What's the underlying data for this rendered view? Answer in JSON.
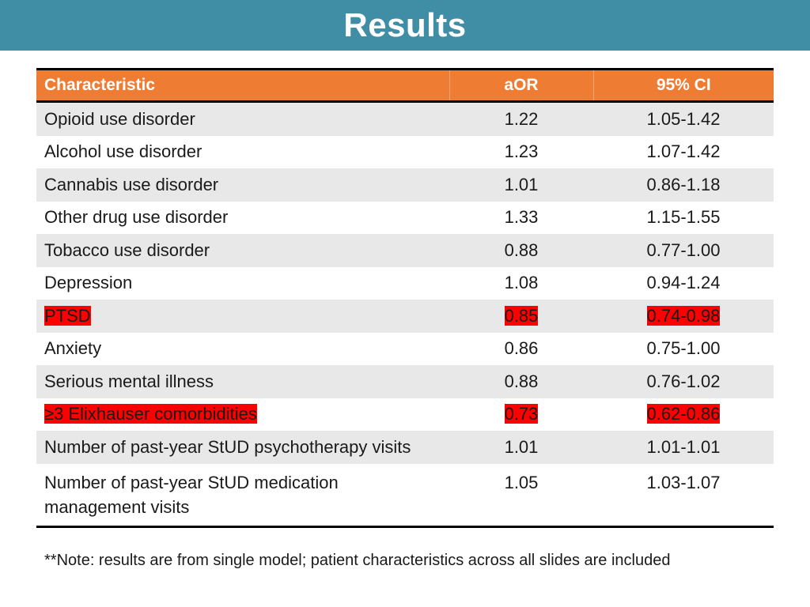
{
  "slide": {
    "title": "Results",
    "note": "**Note: results are from single model; patient characteristics across all slides are included"
  },
  "colors": {
    "title_bar": "#3f8ea6",
    "header_bg": "#ee7d33",
    "row_shade": "#e8e8e8",
    "highlight": "#ff0000"
  },
  "table": {
    "headers": [
      "Characteristic",
      "aOR",
      "95% CI"
    ],
    "rows": [
      {
        "characteristic": "Opioid use disorder",
        "aor": "1.22",
        "ci": "1.05-1.42",
        "highlighted": false
      },
      {
        "characteristic": "Alcohol use disorder",
        "aor": "1.23",
        "ci": "1.07-1.42",
        "highlighted": false
      },
      {
        "characteristic": "Cannabis use disorder",
        "aor": "1.01",
        "ci": "0.86-1.18",
        "highlighted": false
      },
      {
        "characteristic": "Other drug use disorder",
        "aor": "1.33",
        "ci": "1.15-1.55",
        "highlighted": false
      },
      {
        "characteristic": "Tobacco use disorder",
        "aor": "0.88",
        "ci": "0.77-1.00",
        "highlighted": false
      },
      {
        "characteristic": "Depression",
        "aor": "1.08",
        "ci": "0.94-1.24",
        "highlighted": false
      },
      {
        "characteristic": "PTSD",
        "aor": "0.85",
        "ci": "0.74-0.98",
        "highlighted": true
      },
      {
        "characteristic": "Anxiety",
        "aor": "0.86",
        "ci": "0.75-1.00",
        "highlighted": false
      },
      {
        "characteristic": "Serious mental illness",
        "aor": "0.88",
        "ci": "0.76-1.02",
        "highlighted": false
      },
      {
        "characteristic": "≥3 Elixhauser comorbidities",
        "aor": "0.73",
        "ci": "0.62-0.86",
        "highlighted": true
      },
      {
        "characteristic": "Number of past-year StUD psychotherapy visits",
        "aor": "1.01",
        "ci": "1.01-1.01",
        "highlighted": false
      },
      {
        "characteristic": "Number of past-year StUD medication management visits",
        "aor": "1.05",
        "ci": "1.03-1.07",
        "highlighted": false
      }
    ]
  }
}
